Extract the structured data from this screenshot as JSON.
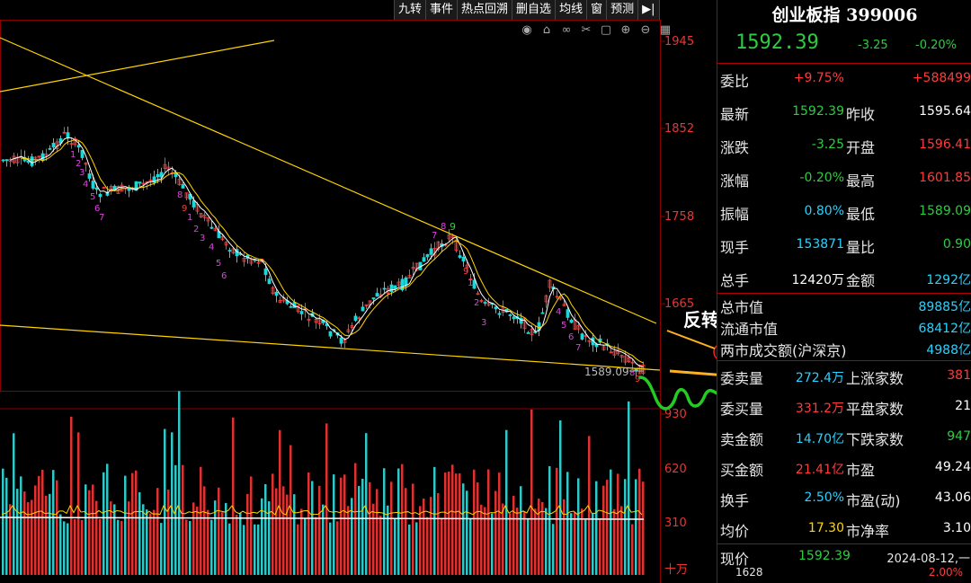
{
  "toolbar": {
    "items": [
      "九转",
      "事件",
      "热点回溯",
      "删自选",
      "均线",
      "窗",
      "预测"
    ],
    "collapse_icon": "arrow-right-end-icon"
  },
  "tool_icons": [
    "eye-icon",
    "tag-icon",
    "link-icon",
    "scissors-icon",
    "lock-icon",
    "zoom-in-icon",
    "zoom-out-icon",
    "grid-icon"
  ],
  "chart": {
    "price_axis": [
      "1945",
      "1852",
      "1758",
      "1665",
      "930"
    ],
    "volume_axis": [
      "620",
      "310",
      "十万"
    ],
    "low_marker": "1589.09",
    "annotation": "反转",
    "colors": {
      "up": "#ff3b3b",
      "down": "#1ed6d6",
      "trend": "#ffd400",
      "projection": "#22cc22",
      "arrow": "#ffb020",
      "td_magenta": "#e040e0"
    }
  },
  "chart_data": {
    "type": "candlestick",
    "ylim": [
      1589.09,
      1945
    ],
    "y_ticks": [
      1945,
      1852,
      1758,
      1665
    ],
    "volume_ticks": [
      620,
      310
    ],
    "volume_unit": "十万",
    "low": 1589.09,
    "td_counts": [
      "1",
      "2",
      "3",
      "4",
      "5",
      "6",
      "7",
      "8",
      "9"
    ]
  },
  "quote": {
    "title": "创业板指 399006",
    "price": "1592.39",
    "change": "-3.25",
    "change_pct": "-0.20%",
    "rows": [
      {
        "l": "委比",
        "v": "+9.75%",
        "r": "+588499",
        "vc": "red",
        "rc": "red"
      },
      {
        "l": "最新",
        "v": "1592.39",
        "l2": "昨收",
        "r": "1595.64",
        "vc": "green",
        "rc": "white"
      },
      {
        "l": "涨跌",
        "v": "-3.25",
        "l2": "开盘",
        "r": "1596.41",
        "vc": "green",
        "rc": "red"
      },
      {
        "l": "涨幅",
        "v": "-0.20%",
        "l2": "最高",
        "r": "1601.85",
        "vc": "green",
        "rc": "red"
      },
      {
        "l": "振幅",
        "v": "0.80%",
        "l2": "最低",
        "r": "1589.09",
        "vc": "cyan",
        "rc": "green"
      },
      {
        "l": "现手",
        "v": "153871",
        "l2": "量比",
        "r": "0.90",
        "vc": "cyan",
        "rc": "green"
      },
      {
        "l": "总手",
        "v": "12420万",
        "l2": "金额",
        "r": "1292亿",
        "vc": "white",
        "rc": "cyan"
      }
    ],
    "rows2": [
      {
        "l": "总市值",
        "r": "89885亿"
      },
      {
        "l": "流通市值",
        "r": "68412亿"
      },
      {
        "l": "两市成交额(沪深京)",
        "r": "4988亿"
      }
    ],
    "rows3": [
      {
        "l": "委卖量",
        "v": "272.4万",
        "l2": "上涨家数",
        "r": "381",
        "vc": "cyan",
        "rc": "red"
      },
      {
        "l": "委买量",
        "v": "331.2万",
        "l2": "平盘家数",
        "r": "21",
        "vc": "red",
        "rc": "white"
      },
      {
        "l": "卖金额",
        "v": "14.70亿",
        "l2": "下跌家数",
        "r": "947",
        "vc": "cyan",
        "rc": "green"
      },
      {
        "l": "买金额",
        "v": "21.41亿",
        "l2": "市盈",
        "r": "49.24",
        "vc": "red",
        "rc": "white"
      },
      {
        "l": "换手",
        "v": "2.50%",
        "l2": "市盈(动)",
        "r": "43.06",
        "vc": "cyan",
        "rc": "white"
      },
      {
        "l": "均价",
        "v": "17.30",
        "l2": "市净率",
        "r": "3.10",
        "vc": "yellow",
        "rc": "white"
      }
    ],
    "footer": {
      "l": "现价",
      "v": "1592.39",
      "date": "2024-08-12,一",
      "bottom_left": "1628",
      "bottom_right": "2.00%"
    }
  }
}
